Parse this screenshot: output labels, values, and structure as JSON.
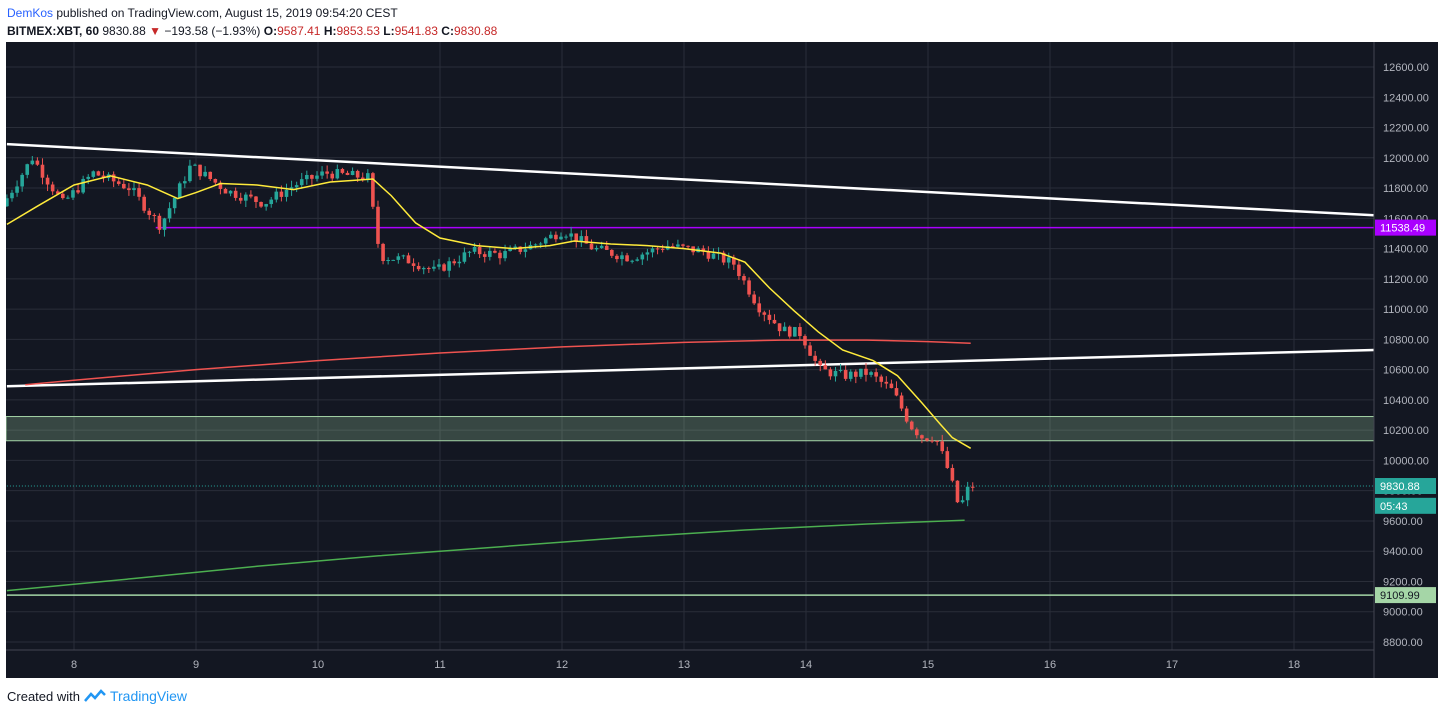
{
  "header": {
    "author": "DemKos",
    "published": "published on TradingView.com, August 15, 2019 09:54:20 CEST",
    "symbol": "BITMEX:XBT, 60",
    "last": "9830.88",
    "change": "−193.58 (−1.93%)",
    "o_label": "O:",
    "o_value": "9587.41",
    "h_label": "H:",
    "h_value": "9853.53",
    "l_label": "L:",
    "l_value": "9541.83",
    "c_label": "C:",
    "c_value": "9830.88"
  },
  "footer": {
    "created_with": "Created with",
    "brand": "TradingView"
  },
  "colors": {
    "up": "#26a69a",
    "down": "#ef5350",
    "bg": "#131722",
    "ma_fast": "#ffeb3b",
    "ma_slow": "#ef5350",
    "ma_long": "#4caf50",
    "purple": "#aa00ff",
    "trend": "#ffffff",
    "zone": "#a5d6a7"
  },
  "chart_data": {
    "type": "candlestick",
    "y_axis": {
      "min": 8700,
      "max": 12700,
      "ticks": [
        "12600.00",
        "12400.00",
        "12200.00",
        "12000.00",
        "11800.00",
        "11600.00",
        "11400.00",
        "11200.00",
        "11000.00",
        "10800.00",
        "10600.00",
        "10400.00",
        "10200.00",
        "10000.00",
        "9800.00",
        "9600.00",
        "9400.00",
        "9200.00",
        "9000.00",
        "8800.00"
      ]
    },
    "x_axis": {
      "ticks": [
        "8",
        "9",
        "10",
        "11",
        "12",
        "13",
        "14",
        "15",
        "16",
        "17",
        "18"
      ]
    },
    "grid": true,
    "price_labels": [
      {
        "text": "11538.49",
        "value": 11538.49,
        "color": "#aa00ff"
      },
      {
        "text": "9830.88",
        "value": 9830.88,
        "color": "#26a69a"
      },
      {
        "text": "05:43",
        "value": 9700,
        "color": "#26a69a"
      },
      {
        "text": "9109.99",
        "value": 9109.99,
        "color": "#a5d6a7"
      }
    ],
    "horizontal_lines": [
      {
        "value": 11538.49,
        "from_day": 8.67,
        "color": "#aa00ff"
      },
      {
        "value": 9109.99,
        "from_day": 7.45,
        "color": "#a5d6a7"
      },
      {
        "value": 9830.88,
        "from_day": 7.45,
        "color": "#26a69a",
        "dotted": true
      }
    ],
    "zone": {
      "top": 10290,
      "bottom": 10130
    },
    "trendlines": [
      {
        "from": [
          7.45,
          12090
        ],
        "to": [
          18.7,
          11620
        ]
      },
      {
        "from": [
          7.45,
          10490
        ],
        "to": [
          18.7,
          10730
        ]
      }
    ],
    "ma_fast": [
      [
        7.45,
        11560
      ],
      [
        7.7,
        11680
      ],
      [
        8.0,
        11820
      ],
      [
        8.3,
        11880
      ],
      [
        8.6,
        11820
      ],
      [
        8.85,
        11730
      ],
      [
        9.0,
        11770
      ],
      [
        9.2,
        11830
      ],
      [
        9.5,
        11820
      ],
      [
        9.8,
        11790
      ],
      [
        10.1,
        11840
      ],
      [
        10.45,
        11860
      ],
      [
        10.6,
        11750
      ],
      [
        10.8,
        11570
      ],
      [
        11.0,
        11470
      ],
      [
        11.3,
        11420
      ],
      [
        11.6,
        11400
      ],
      [
        11.9,
        11420
      ],
      [
        12.1,
        11450
      ],
      [
        12.4,
        11430
      ],
      [
        12.7,
        11420
      ],
      [
        13.0,
        11400
      ],
      [
        13.3,
        11370
      ],
      [
        13.5,
        11310
      ],
      [
        13.7,
        11140
      ],
      [
        13.9,
        10990
      ],
      [
        14.1,
        10850
      ],
      [
        14.3,
        10730
      ],
      [
        14.55,
        10660
      ],
      [
        14.75,
        10560
      ],
      [
        14.95,
        10380
      ],
      [
        15.1,
        10240
      ],
      [
        15.2,
        10150
      ],
      [
        15.35,
        10080
      ]
    ],
    "ma_slow": [
      [
        7.6,
        10500
      ],
      [
        8.0,
        10530
      ],
      [
        9.0,
        10600
      ],
      [
        10.0,
        10660
      ],
      [
        11.0,
        10710
      ],
      [
        12.0,
        10750
      ],
      [
        13.0,
        10780
      ],
      [
        13.8,
        10795
      ],
      [
        14.5,
        10795
      ],
      [
        15.0,
        10785
      ],
      [
        15.35,
        10775
      ]
    ],
    "ma_long": [
      [
        7.45,
        9140
      ],
      [
        8.5,
        9220
      ],
      [
        9.5,
        9300
      ],
      [
        10.5,
        9370
      ],
      [
        11.5,
        9430
      ],
      [
        12.5,
        9490
      ],
      [
        13.5,
        9540
      ],
      [
        14.5,
        9580
      ],
      [
        15.3,
        9605
      ]
    ],
    "candles_ohlc_keypoints": [
      [
        7.45,
        11680
      ],
      [
        7.7,
        12000
      ],
      [
        7.95,
        11700
      ],
      [
        8.2,
        11900
      ],
      [
        8.5,
        11800
      ],
      [
        8.75,
        11550
      ],
      [
        9.0,
        11950
      ],
      [
        9.3,
        11780
      ],
      [
        9.6,
        11700
      ],
      [
        9.85,
        11820
      ],
      [
        10.1,
        11900
      ],
      [
        10.45,
        11870
      ],
      [
        10.55,
        11350
      ],
      [
        10.8,
        11320
      ],
      [
        11.0,
        11250
      ],
      [
        11.3,
        11380
      ],
      [
        11.55,
        11360
      ],
      [
        11.8,
        11420
      ],
      [
        12.05,
        11520
      ],
      [
        12.3,
        11400
      ],
      [
        12.6,
        11340
      ],
      [
        12.9,
        11420
      ],
      [
        13.2,
        11380
      ],
      [
        13.45,
        11300
      ],
      [
        13.65,
        11020
      ],
      [
        13.85,
        10860
      ],
      [
        14.0,
        10840
      ],
      [
        14.15,
        10600
      ],
      [
        14.35,
        10560
      ],
      [
        14.55,
        10580
      ],
      [
        14.75,
        10460
      ],
      [
        14.9,
        10230
      ],
      [
        15.0,
        10150
      ],
      [
        15.1,
        10160
      ],
      [
        15.2,
        9950
      ],
      [
        15.3,
        9680
      ],
      [
        15.38,
        9830.88
      ]
    ]
  }
}
